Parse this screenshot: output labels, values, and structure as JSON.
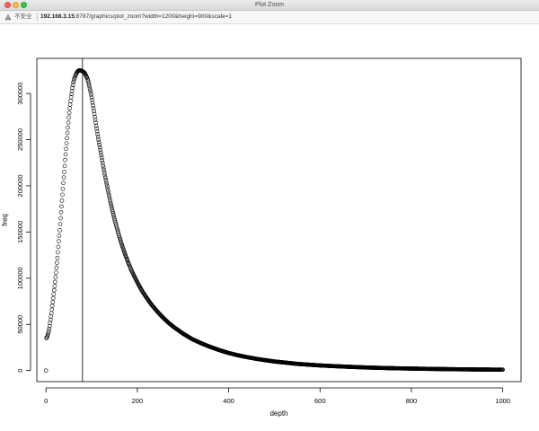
{
  "window": {
    "title": "Plot Zoom",
    "insecure_label": "不安全",
    "url_host": "192.168.3.15",
    "url_rest": ":8787/graphics/plot_zoom?width=1200&height=900&scale=1",
    "icons": [
      "close-icon",
      "minimize-icon",
      "maximize-icon",
      "warning-icon"
    ]
  },
  "chart_data": {
    "type": "scatter",
    "title": "",
    "xlabel": "depth",
    "ylabel": "freq",
    "xlim": [
      -20,
      1040
    ],
    "ylim": [
      -12000,
      338000
    ],
    "xticks": [
      0,
      200,
      400,
      600,
      800,
      1000
    ],
    "xtick_labels": [
      "0",
      "200",
      "400",
      "600",
      "800",
      "1000"
    ],
    "yticks": [
      0,
      50000,
      100000,
      150000,
      200000,
      250000,
      300000
    ],
    "ytick_labels": [
      "0",
      "50000",
      "100000",
      "150000",
      "200000",
      "250000",
      "300000"
    ],
    "vline_x": 80,
    "marker": "open-circle",
    "grid": false,
    "series": [
      {
        "x": [
          0,
          1,
          2,
          3,
          4,
          5,
          6,
          8,
          10,
          12,
          15,
          18,
          20,
          22,
          25,
          28,
          30,
          32,
          35,
          38,
          40,
          42,
          45,
          48,
          50,
          52,
          55,
          58,
          60,
          62,
          65,
          68,
          70,
          72,
          75,
          78,
          80,
          82,
          85,
          88,
          90,
          92,
          95,
          98,
          100,
          105,
          110,
          115,
          120,
          125,
          130,
          135,
          140,
          145,
          150,
          155,
          160,
          165,
          170,
          175,
          180,
          185,
          190,
          195,
          200,
          210,
          220,
          230,
          240,
          250,
          260,
          270,
          280,
          290,
          300,
          320,
          340,
          360,
          380,
          400,
          420,
          440,
          460,
          480,
          500,
          550,
          600,
          650,
          700,
          750,
          800,
          850,
          900,
          950,
          1000
        ],
        "y": [
          0,
          35000,
          36000,
          37000,
          38500,
          40500,
          42500,
          48000,
          55000,
          62000,
          74000,
          87000,
          96000,
          106000,
          122000,
          140000,
          152000,
          165000,
          184000,
          203000,
          215000,
          228000,
          246000,
          263000,
          274000,
          284000,
          296000,
          306000,
          312000,
          316000,
          320000,
          323000,
          324000,
          325000,
          325000,
          324500,
          324000,
          323500,
          322000,
          319000,
          317000,
          314000,
          308000,
          301000,
          296000,
          281000,
          265000,
          250000,
          236000,
          222000,
          209000,
          197000,
          185000,
          174000,
          164000,
          155000,
          146000,
          138000,
          130500,
          123500,
          117000,
          111000,
          105500,
          100500,
          95500,
          86500,
          79000,
          72000,
          66000,
          60500,
          55500,
          51000,
          47000,
          43500,
          40000,
          34000,
          29500,
          25500,
          22000,
          19000,
          16500,
          14500,
          12700,
          11200,
          9800,
          7200,
          5500,
          4300,
          3300,
          2600,
          2100,
          1700,
          1350,
          1100,
          900
        ]
      }
    ]
  }
}
